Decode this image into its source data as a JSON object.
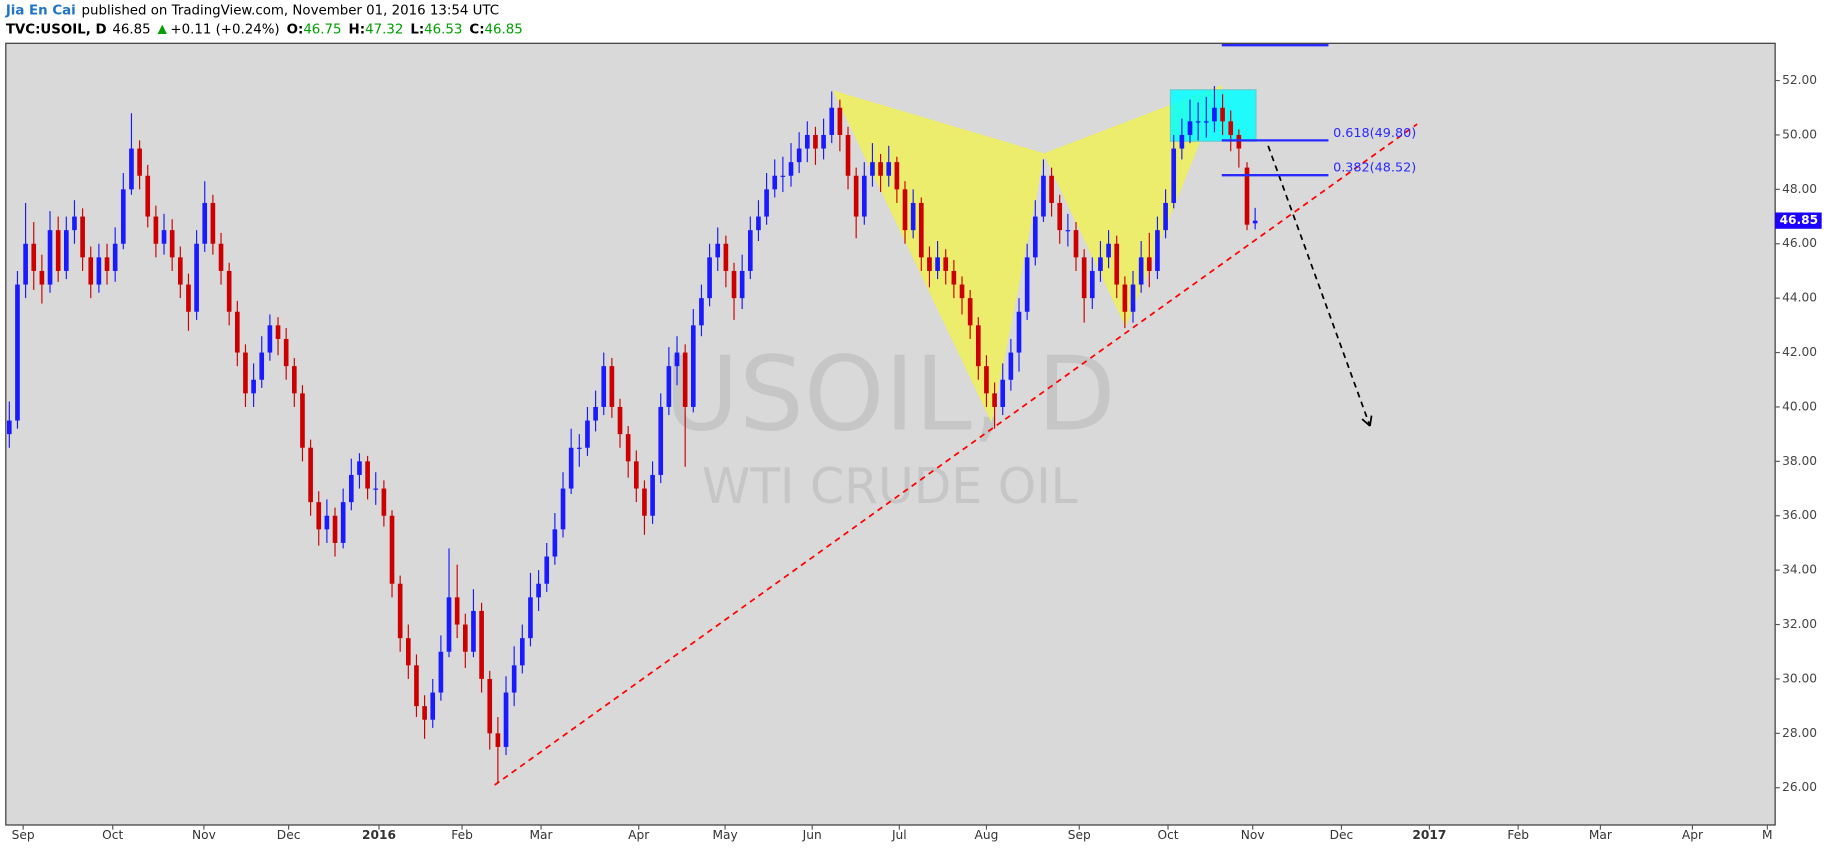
{
  "header": {
    "author": "Jia En Cai",
    "published": "published on TradingView.com, November 01, 2016 13:54 UTC",
    "symbol": "TVC:USOIL, D",
    "change": "+0.11 (+0.24%)",
    "ohlc_labels": [
      "O:",
      "H:",
      "L:",
      "C:"
    ]
  },
  "chart_data": {
    "type": "candlestick",
    "watermark": "USOIL, D",
    "watermark_subtitle": "WTI CRUDE OIL",
    "xlim": [
      -0.43,
      216.86
    ],
    "xticks": [
      {
        "value": 1.7,
        "label": "Sep"
      },
      {
        "value": 12.7,
        "label": "Oct"
      },
      {
        "value": 23.9,
        "label": "Nov"
      },
      {
        "value": 34.3,
        "label": "Dec"
      },
      {
        "value": 45.4,
        "label": "2016"
      },
      {
        "value": 55.6,
        "label": "Feb"
      },
      {
        "value": 65.3,
        "label": "Mar"
      },
      {
        "value": 77.3,
        "label": "Apr"
      },
      {
        "value": 87.9,
        "label": "May"
      },
      {
        "value": 98.6,
        "label": "Jun"
      },
      {
        "value": 109.3,
        "label": "Jul"
      },
      {
        "value": 120,
        "label": "Aug"
      },
      {
        "value": 131.4,
        "label": "Sep"
      },
      {
        "value": 142.3,
        "label": "Oct"
      },
      {
        "value": 152.7,
        "label": "Nov"
      },
      {
        "value": 163.6,
        "label": "Dec"
      },
      {
        "value": 174.4,
        "label": "2017"
      },
      {
        "value": 185.3,
        "label": "Feb"
      },
      {
        "value": 195.4,
        "label": "Mar"
      },
      {
        "value": 206.7,
        "label": "Apr"
      },
      {
        "value": 215.9,
        "label": "M"
      }
    ],
    "ylim": [
      24.63,
      53.37
    ],
    "yticks": [
      {
        "value": 26,
        "label": "26.00"
      },
      {
        "value": 28,
        "label": "28.00"
      },
      {
        "value": 30,
        "label": "30.00"
      },
      {
        "value": 32,
        "label": "32.00"
      },
      {
        "value": 34,
        "label": "34.00"
      },
      {
        "value": 36,
        "label": "36.00"
      },
      {
        "value": 38,
        "label": "38.00"
      },
      {
        "value": 40,
        "label": "40.00"
      },
      {
        "value": 42,
        "label": "42.00"
      },
      {
        "value": 44,
        "label": "44.00"
      },
      {
        "value": 46,
        "label": "46.00"
      },
      {
        "value": 48,
        "label": "48.00"
      },
      {
        "value": 50,
        "label": "50.00"
      },
      {
        "value": 52,
        "label": "52.00"
      }
    ],
    "grid": false,
    "up_color": "#1a1aff",
    "down_color": "#cc0000",
    "open": [
      39,
      39.5,
      44.5,
      46,
      45,
      44.5,
      46.5,
      45,
      46.5,
      47,
      45.5,
      44.5,
      45.5,
      45,
      46,
      48,
      49.5,
      48.5,
      47,
      46,
      46.5,
      45.5,
      44.5,
      43.5,
      46,
      47.5,
      46,
      45,
      43.5,
      42,
      40.5,
      41,
      42,
      43,
      42.5,
      41.5,
      40.5,
      38.5,
      36.5,
      35.5,
      36,
      35,
      36.5,
      37.5,
      38,
      37,
      37,
      36,
      33.5,
      31.5,
      30.5,
      29,
      28.5,
      29.5,
      31,
      33,
      32,
      31,
      32.5,
      30,
      28,
      27.5,
      29.5,
      30.5,
      31.5,
      33,
      33.5,
      34.5,
      35.5,
      37,
      38.5,
      38.5,
      39.5,
      40,
      41.5,
      40,
      39,
      38,
      37,
      36,
      37.5,
      40,
      41.5,
      42,
      40,
      43,
      44,
      45.5,
      46,
      45,
      44,
      45,
      46.5,
      47,
      48,
      48.5,
      48.5,
      49,
      49.5,
      50,
      49.5,
      50,
      51,
      50,
      48.5,
      47,
      48.5,
      49,
      48.5,
      49,
      48,
      46.5,
      47.5,
      45.5,
      45,
      45.5,
      45,
      44.5,
      44,
      43,
      41.5,
      40.5,
      40,
      41,
      42,
      43.5,
      45.5,
      47,
      48.5,
      47.5,
      46.5,
      46.5,
      45.5,
      44,
      45,
      45.5,
      46,
      44.5,
      43.5,
      44.5,
      45.5,
      45,
      46.5,
      47.5,
      49.5,
      50,
      50.5,
      50.5,
      50.5,
      51,
      50.5,
      50,
      48.8,
      46.75
    ],
    "high": [
      40.2,
      45,
      47.5,
      46.8,
      45.6,
      47.2,
      47,
      47,
      47.6,
      47.3,
      45.9,
      46,
      46,
      46.6,
      48.6,
      50.8,
      49.8,
      48.9,
      47.4,
      47.1,
      46.9,
      45.9,
      44.9,
      46.5,
      48.3,
      47.8,
      46.4,
      45.3,
      43.9,
      42.3,
      41.6,
      42.6,
      43.4,
      43.3,
      42.9,
      41.8,
      40.8,
      38.8,
      36.9,
      36.6,
      36.3,
      37,
      38.1,
      38.3,
      38.2,
      37.6,
      37.3,
      36.2,
      33.8,
      32,
      30.9,
      29.4,
      30,
      31.6,
      34.8,
      34.2,
      32.4,
      33.3,
      32.8,
      30.3,
      28.6,
      30.1,
      31.2,
      32,
      33.9,
      34,
      35,
      36.1,
      37.6,
      39.2,
      39,
      40,
      40.6,
      42,
      41.8,
      40.3,
      39.3,
      38.4,
      37.3,
      38,
      40.5,
      42.2,
      42.6,
      42.3,
      43.6,
      44.5,
      46,
      46.6,
      46.3,
      45.3,
      45.6,
      47,
      47.6,
      48.6,
      49.1,
      49.2,
      49.7,
      50.1,
      50.5,
      50.3,
      50.6,
      51.6,
      51.3,
      50.3,
      48.8,
      49,
      49.7,
      49.3,
      49.6,
      49.2,
      48.3,
      48,
      47.7,
      45.9,
      46.1,
      45.8,
      45.4,
      44.8,
      44.3,
      43.3,
      41.9,
      40.9,
      41.6,
      42.5,
      44,
      46,
      47.6,
      49.1,
      48.8,
      47.8,
      47.1,
      46.8,
      45.8,
      45.5,
      46.1,
      46.5,
      46.3,
      44.8,
      45,
      46.1,
      46.4,
      47,
      48,
      50,
      50.6,
      51.3,
      51.2,
      51.4,
      51.8,
      51.5,
      50.9,
      50.2,
      49,
      47.32
    ],
    "low": [
      38.5,
      39.2,
      44,
      44.3,
      43.8,
      44.2,
      44.6,
      44.7,
      46,
      45,
      44,
      44.2,
      44.5,
      44.6,
      45.8,
      47.8,
      48,
      46.6,
      45.5,
      45.6,
      45,
      44,
      42.8,
      43.2,
      45.7,
      45.6,
      44.5,
      43,
      41.5,
      40,
      40,
      40.7,
      41.7,
      41.9,
      41,
      40,
      38,
      36,
      34.9,
      35,
      34.5,
      34.8,
      36.2,
      37,
      36.6,
      36.4,
      35.6,
      33,
      31,
      30,
      28.6,
      27.8,
      28.2,
      29.2,
      30.8,
      31.5,
      30.4,
      30.8,
      29.5,
      27.4,
      26.2,
      27.2,
      29,
      30.2,
      31.2,
      32.5,
      33.2,
      34.2,
      35.2,
      36.8,
      37.8,
      38.2,
      39.1,
      39.7,
      39.6,
      38.5,
      37.4,
      36.5,
      35.3,
      35.7,
      37.2,
      39.7,
      40.8,
      37.8,
      39.8,
      42.6,
      43.7,
      45,
      44.4,
      43.2,
      43.6,
      44.7,
      46.1,
      46.7,
      47.7,
      47.9,
      48.1,
      48.6,
      49,
      48.9,
      49.1,
      49.7,
      49.4,
      48,
      46.2,
      46.7,
      48.1,
      47.9,
      48.1,
      47.5,
      46,
      46.2,
      45,
      44.4,
      44.7,
      44.5,
      44,
      43.4,
      42.5,
      41,
      40,
      39.2,
      39.7,
      40.6,
      41.3,
      43.2,
      45.2,
      46.8,
      47,
      46,
      45.9,
      45,
      43.1,
      43.6,
      44.6,
      45.1,
      44,
      42.9,
      43.1,
      44.2,
      44.4,
      44.7,
      46.2,
      47.3,
      49.1,
      49.7,
      49.8,
      49.9,
      50.1,
      50,
      49.4,
      48.8,
      46.5,
      46.53
    ],
    "close": [
      39.5,
      44.5,
      46,
      45,
      44.5,
      46.5,
      45,
      46.5,
      47,
      45.5,
      44.5,
      45.5,
      45,
      46,
      48,
      49.5,
      48.5,
      47,
      46,
      46.5,
      45.5,
      44.5,
      43.5,
      46,
      47.5,
      46,
      45,
      43.5,
      42,
      40.5,
      41,
      42,
      43,
      42.5,
      41.5,
      40.5,
      38.5,
      36.5,
      35.5,
      36,
      35,
      36.5,
      37.5,
      38,
      37,
      37,
      36,
      33.5,
      31.5,
      30.5,
      29,
      28.5,
      29.5,
      31,
      33,
      32,
      31,
      32.5,
      30,
      28,
      27.5,
      29.5,
      30.5,
      31.5,
      33,
      33.5,
      34.5,
      35.5,
      37,
      38.5,
      38.5,
      39.5,
      40,
      41.5,
      40,
      39,
      38,
      37,
      36,
      37.5,
      40,
      41.5,
      42,
      40,
      43,
      44,
      45.5,
      46,
      45,
      44,
      45,
      46.5,
      47,
      48,
      48.5,
      48.5,
      49,
      49.5,
      50,
      49.5,
      50,
      51,
      50,
      48.5,
      47,
      48.5,
      49,
      48.5,
      49,
      48,
      46.5,
      47.5,
      45.5,
      45,
      45.5,
      45,
      44.5,
      44,
      43,
      41.5,
      40.5,
      40,
      41,
      42,
      43.5,
      45.5,
      47,
      48.5,
      47.5,
      46.5,
      46.5,
      45.5,
      44,
      45,
      45.5,
      46,
      44.5,
      43.5,
      44.5,
      45.5,
      45,
      46.5,
      47.5,
      49.5,
      50,
      50.5,
      50.5,
      50.5,
      51,
      50.5,
      50,
      49.5,
      46.7,
      46.85
    ],
    "drawings": {
      "pattern": {
        "color": "#eeee60",
        "x": [
          101.3,
          120.6,
          127.1,
          137.1,
          148.9
        ],
        "y": [
          51.6,
          39.5,
          49.3,
          43,
          51.8
        ]
      },
      "box": {
        "color": "#00ffff",
        "x": [
          142.6,
          153.1
        ],
        "y": [
          49.77,
          51.66
        ]
      },
      "trendline": {
        "color": "#ff0000",
        "x": [
          59.6,
          172.9
        ],
        "y": [
          26.1,
          50.4
        ]
      },
      "projection": {
        "color": "#000000",
        "x": [
          154.6,
          167.1
        ],
        "y": [
          49.6,
          39.3
        ]
      },
      "fib": {
        "color": "#2a2aff",
        "x": [
          148.9,
          162
        ],
        "levels": [
          {
            "price": 53.3
          },
          {
            "price": 49.8,
            "label": "0.618(49.80)"
          },
          {
            "price": 48.52,
            "label": "0.382(48.52)"
          }
        ]
      }
    }
  }
}
